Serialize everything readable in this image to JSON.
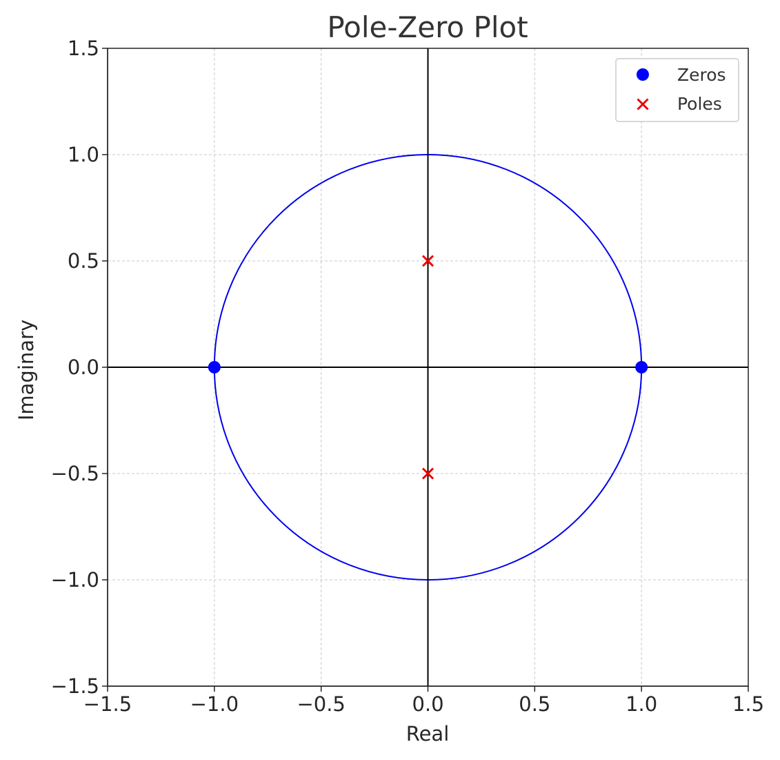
{
  "chart_data": {
    "type": "scatter",
    "title": "Pole-Zero Plot",
    "xlabel": "Real",
    "ylabel": "Imaginary",
    "xlim": [
      -1.5,
      1.5
    ],
    "ylim": [
      -1.5,
      1.5
    ],
    "xticks": [
      -1.5,
      -1.0,
      -0.5,
      0.0,
      0.5,
      1.0,
      1.5
    ],
    "yticks": [
      -1.5,
      -1.0,
      -0.5,
      0.0,
      0.5,
      1.0,
      1.5
    ],
    "xtick_labels": [
      "−1.5",
      "−1.0",
      "−0.5",
      "0.0",
      "0.5",
      "1.0",
      "1.5"
    ],
    "ytick_labels": [
      "−1.5",
      "−1.0",
      "−0.5",
      "0.0",
      "0.5",
      "1.0",
      "1.5"
    ],
    "grid": true,
    "legend_position": "top-right",
    "unit_circle": {
      "radius": 1,
      "color": "#0000ee"
    },
    "reference_axes": {
      "color": "#000000"
    },
    "series": [
      {
        "name": "Zeros",
        "marker": "circle",
        "color": "#0000ff",
        "points": [
          [
            -1.0,
            0.0
          ],
          [
            1.0,
            0.0
          ]
        ]
      },
      {
        "name": "Poles",
        "marker": "x",
        "color": "#ee0000",
        "points": [
          [
            0.0,
            0.5
          ],
          [
            0.0,
            -0.5
          ]
        ]
      }
    ]
  }
}
